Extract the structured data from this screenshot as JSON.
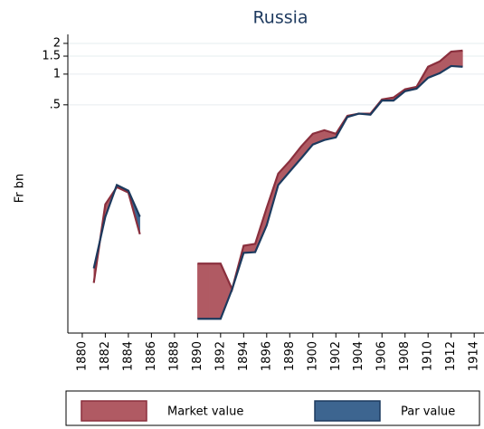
{
  "chart_data": {
    "type": "area-band",
    "title": "Russia",
    "y_label": "Fr bn",
    "log_y": true,
    "grid": true,
    "x": [
      1881,
      1882,
      1883,
      1884,
      1885,
      1886,
      1887,
      1888,
      1889,
      1890,
      1891,
      1892,
      1893,
      1894,
      1895,
      1896,
      1897,
      1898,
      1899,
      1900,
      1901,
      1902,
      1903,
      1904,
      1905,
      1906,
      1907,
      1908,
      1909,
      1910,
      1911,
      1912,
      1913
    ],
    "series": [
      {
        "name": "Market value",
        "color": "#b05a63",
        "line_color": "#8a2f3d",
        "values": [
          0.009,
          0.053,
          0.078,
          0.069,
          0.027,
          null,
          null,
          null,
          null,
          0.0139,
          0.0139,
          0.0139,
          0.0078,
          0.0208,
          0.0217,
          0.049,
          0.106,
          0.141,
          0.196,
          0.26,
          0.282,
          0.26,
          0.39,
          0.41,
          0.41,
          0.565,
          0.59,
          0.71,
          0.75,
          1.18,
          1.33,
          1.66,
          1.7
        ]
      },
      {
        "name": "Par value",
        "color": "#3d6590",
        "line_color": "#1c3a5e",
        "values": [
          0.0125,
          0.04,
          0.082,
          0.072,
          0.04,
          null,
          null,
          null,
          null,
          0.004,
          0.004,
          0.004,
          0.0078,
          0.0177,
          0.018,
          0.033,
          0.082,
          0.111,
          0.15,
          0.204,
          0.226,
          0.24,
          0.38,
          0.41,
          0.4,
          0.55,
          0.55,
          0.68,
          0.72,
          0.92,
          1.02,
          1.2,
          1.18
        ]
      }
    ],
    "xlim": [
      1878.75,
      1914.85
    ],
    "xticks": [
      1880,
      1882,
      1884,
      1886,
      1888,
      1890,
      1892,
      1894,
      1896,
      1898,
      1900,
      1902,
      1904,
      1906,
      1908,
      1910,
      1912,
      1914
    ],
    "ylim": [
      0.0029,
      2.45
    ],
    "yticks": [
      {
        "value": 0.5,
        "label": ".5"
      },
      1,
      1.5,
      2
    ],
    "legend": "bottom"
  }
}
